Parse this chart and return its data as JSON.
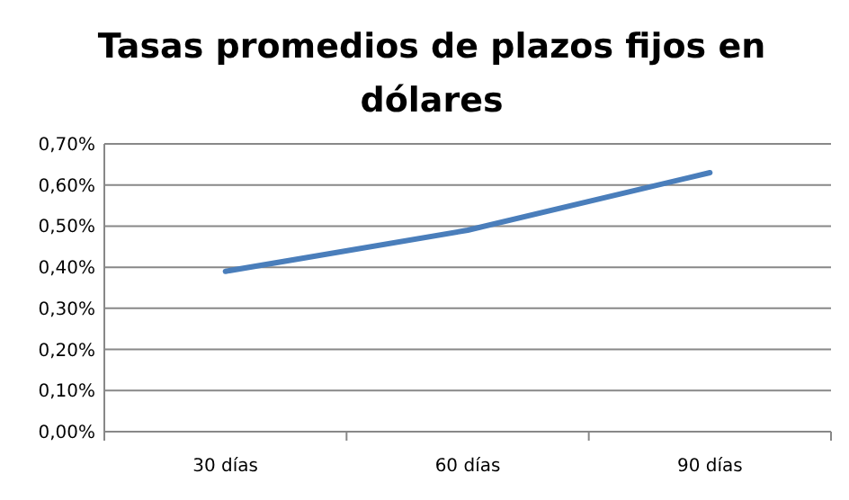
{
  "chart_data": {
    "type": "line",
    "title": "Tasas promedios de plazos fijos en dólares",
    "categories": [
      "30 días",
      "60 días",
      "90 días"
    ],
    "series": [
      {
        "color": "#4a7ebb",
        "values": [
          0.39,
          0.49,
          0.63
        ]
      }
    ],
    "ylim": [
      0,
      0.7
    ],
    "yticks": [
      {
        "value": 0,
        "label": "0,00%"
      },
      {
        "value": 0.1,
        "label": "0,10%"
      },
      {
        "value": 0.2,
        "label": "0,20%"
      },
      {
        "value": 0.3,
        "label": "0,30%"
      },
      {
        "value": 0.4,
        "label": "0,40%"
      },
      {
        "value": 0.5,
        "label": "0,50%"
      },
      {
        "value": 0.6,
        "label": "0,60%"
      },
      {
        "value": 0.7,
        "label": "0,70%"
      }
    ],
    "grid": "y",
    "marker": "none",
    "line_style": "solid"
  }
}
